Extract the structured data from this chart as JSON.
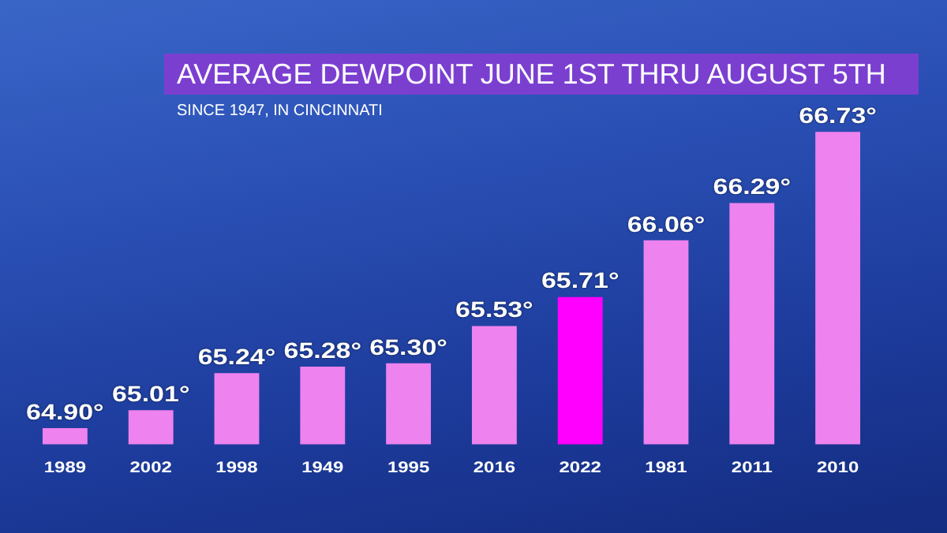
{
  "chart_data": {
    "type": "bar",
    "title": "AVERAGE DEWPOINT JUNE 1ST THRU AUGUST 5TH",
    "subtitle": "SINCE 1947, IN CINCINNATI",
    "categories": [
      "1989",
      "2002",
      "1998",
      "1949",
      "1995",
      "2016",
      "2022",
      "1981",
      "2011",
      "2010"
    ],
    "values": [
      64.9,
      65.01,
      65.24,
      65.28,
      65.3,
      65.53,
      65.71,
      66.06,
      66.29,
      66.73
    ],
    "colors": [
      "#ee82ee",
      "#ee82ee",
      "#ee82ee",
      "#ee82ee",
      "#ee82ee",
      "#ee82ee",
      "#ff00ff",
      "#ee82ee",
      "#ee82ee",
      "#ee82ee"
    ],
    "value_labels": [
      "64.90°",
      "65.01°",
      "65.24°",
      "65.28°",
      "65.30°",
      "65.53°",
      "65.71°",
      "66.06°",
      "66.29°",
      "66.73°"
    ],
    "tick_labels": "x",
    "grid": false,
    "legend": false
  }
}
